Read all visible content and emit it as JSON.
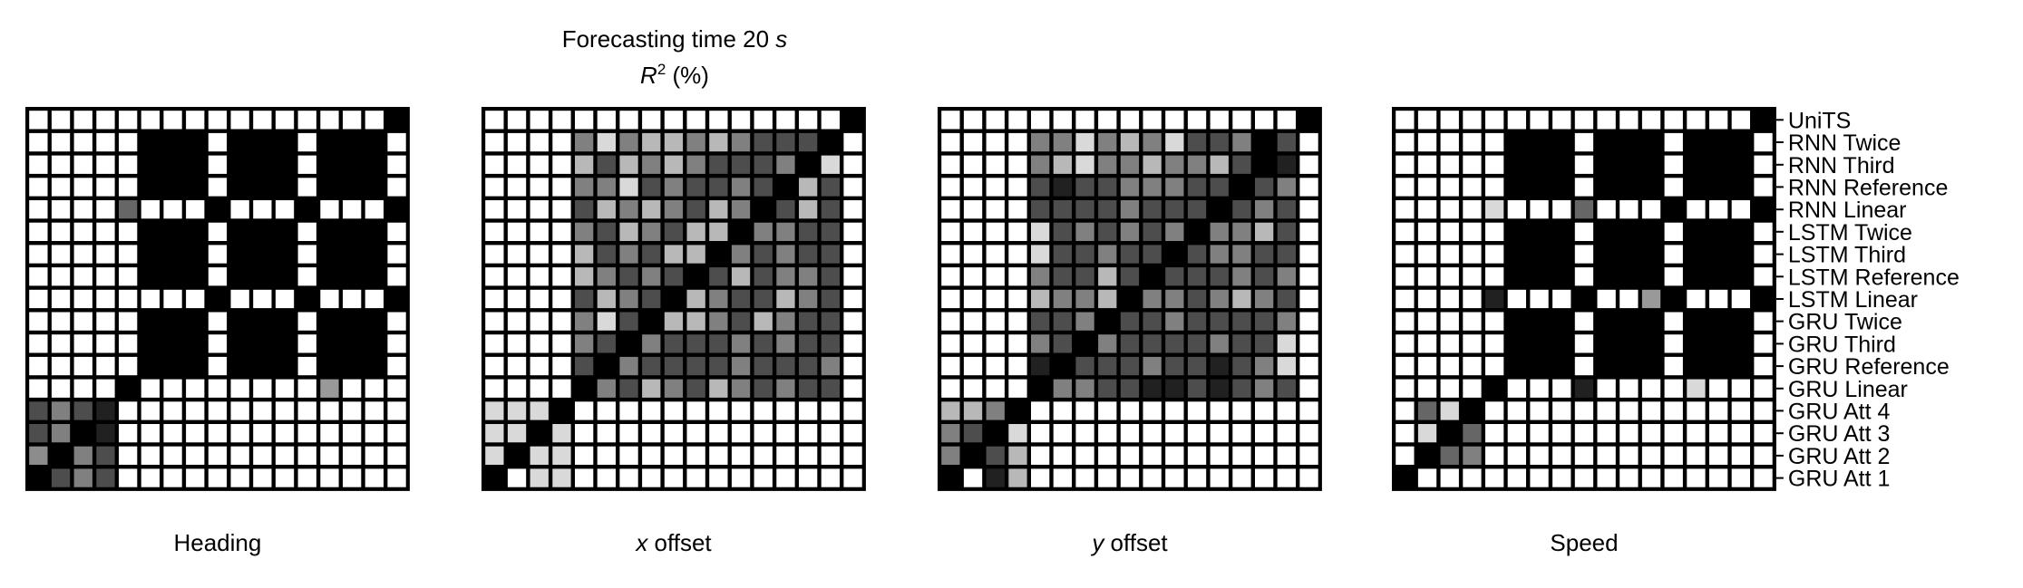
{
  "chart_data": {
    "type": "heatmap",
    "title": "Forecasting time 20 s",
    "title_time_value": "20",
    "title_time_unit": "s",
    "subtitle": "R2 (%)",
    "colormap": "grayscale (0 = black, 1 = white)",
    "y_tick_labels": [
      "UniTS",
      "RNN Twice",
      "RNN Third",
      "RNN Reference",
      "RNN Linear",
      "LSTM Twice",
      "LSTM Third",
      "LSTM Reference",
      "LSTM Linear",
      "GRU Twice",
      "GRU Third",
      "GRU Reference",
      "GRU Linear",
      "GRU Att 4",
      "GRU Att 3",
      "GRU Att 2",
      "GRU Att 1"
    ],
    "y_tick_position": "right of last panel",
    "panels": [
      {
        "xlabel": "Heading",
        "matrix": [
          "11111111111111110",
          "11111000100010001",
          "11111000100010001",
          "11111000100010001",
          "1111p111011101110",
          "11111000100010001",
          "11111000100010001",
          "11111000100010001",
          "11111111011101110",
          "11111000100010001",
          "11111000100010001",
          "11111000100010001",
          "1111011111111q111",
          "bcbr1111111111111",
          "bc0r1111111111111",
          "g0cb1111111111111",
          "0bcb1111111111111"
        ]
      },
      {
        "xlabel": "x offset",
        "xlabel_var": "x",
        "xlabel_rest": " offset",
        "matrix": [
          "11111111111111110",
          "1111cecddcdcbbb01",
          "1111dbdcdcbbbc0e1",
          "1111ccebcbbcb0db1",
          "1111bdcdcbdc0bdb1",
          "1111cbdcbdd0ccbb1",
          "1111dbcbdd0cbcbb1",
          "1111dcbcb0bdbccb1",
          "1111bdcb0dcbbdcb1",
          "1111ceb0ddcbdcbb1",
          "1111cb0cbbbcbcbb1",
          "1111b0cbbbbcbbbc1",
          "11110cbdcbdcbcbb1",
          "eee01111111111111",
          "ee0e1111111111111",
          "e0ee1111111111111",
          "01ee1111111111111"
        ]
      },
      {
        "xlabel": "y offset",
        "xlabel_var": "y",
        "xlabel_rest": " offset",
        "matrix": [
          "11111111111111110",
          "1111ccecdcebbc0b1",
          "1111cdeccdccdb0r1",
          "1111brbbcccbb0bc1",
          "1111bbbbcbbb0bcb1",
          "1111ebcbcbc0ccdb1",
          "1111ebbcbb0bccbb1",
          "1111cbbdb0bbbcbc1",
          "1111dccd0ccbcdcb1",
          "1111bbc0bbcbbbbc1",
          "1111cb0cbbbbcbbe1",
          "1111r0bbbcbbrbce1",
          "11110ccbbrrbrbcb1",
          "ddc01111111111111",
          "cb0e1111111111111",
          "c0bd1111111111111",
          "01rd1111111111111"
        ]
      },
      {
        "xlabel": "Speed",
        "matrix": [
          "11111111111111110",
          "11111000100010001",
          "11111000100010001",
          "11111000100010001",
          "1111e111p11101110",
          "11111000100010001",
          "11111000100010001",
          "11111000100010001",
          "1111r111011q01110",
          "11111000100010001",
          "11111000100010001",
          "11111000100010001",
          "11110111r1111e111",
          "1pe01111111111111",
          "1e0p1111111111111",
          "10pc1111111111111",
          "01111111111111111"
        ]
      }
    ],
    "shade_key": {
      "0": 0.0,
      "r": 0.13,
      "b": 0.3,
      "p": 0.4,
      "c": 0.5,
      "g": 0.55,
      "q": 0.6,
      "d": 0.72,
      "e": 0.85,
      "1": 1.0
    }
  }
}
